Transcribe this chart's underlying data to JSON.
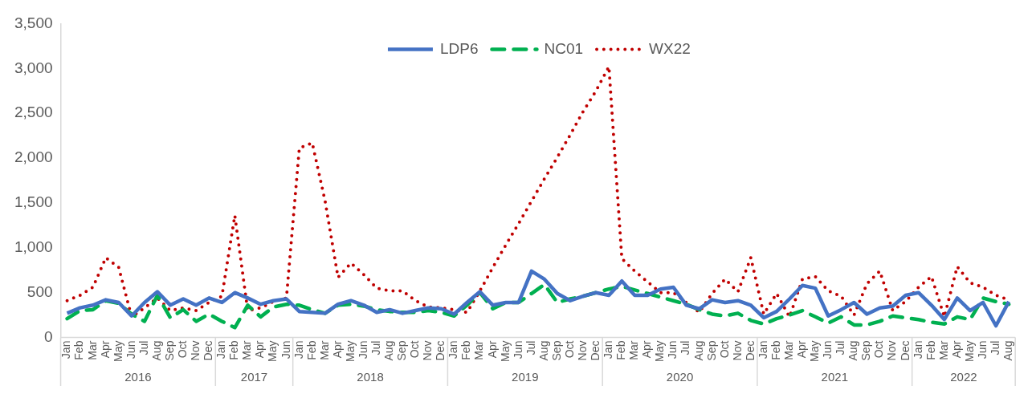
{
  "chart_data": {
    "type": "line",
    "categories": [
      "Jan",
      "Feb",
      "Mar",
      "Apr",
      "May",
      "Jun",
      "Jul",
      "Aug",
      "Sep",
      "Oct",
      "Nov",
      "Dec",
      "Jan",
      "Feb",
      "Mar",
      "Apr",
      "May",
      "Jun",
      "Jan",
      "Feb",
      "Mar",
      "Apr",
      "May",
      "Jun",
      "Jul",
      "Aug",
      "Sep",
      "Oct",
      "Nov",
      "Dec",
      "Jan",
      "Feb",
      "Mar",
      "Apr",
      "May",
      "Jun",
      "Jul",
      "Aug",
      "Sep",
      "Oct",
      "Nov",
      "Dec",
      "Jan",
      "Feb",
      "Mar",
      "Apr",
      "May",
      "Jun",
      "Jul",
      "Aug",
      "Sep",
      "Oct",
      "Nov",
      "Dec",
      "Jan",
      "Feb",
      "Mar",
      "Apr",
      "May",
      "Jun",
      "Jul",
      "Aug",
      "Sep",
      "Oct",
      "Nov",
      "Dec",
      "Jan",
      "Feb",
      "Mar",
      "Apr",
      "May",
      "Jun",
      "Jul",
      "Aug"
    ],
    "series": [
      {
        "name": "LDP6",
        "color": "#4472c4",
        "line_style": "solid",
        "values": [
          270,
          330,
          360,
          420,
          390,
          240,
          390,
          510,
          360,
          430,
          360,
          440,
          390,
          500,
          440,
          370,
          410,
          430,
          290,
          280,
          270,
          370,
          410,
          360,
          280,
          310,
          270,
          300,
          330,
          320,
          260,
          390,
          510,
          360,
          390,
          390,
          740,
          650,
          490,
          410,
          460,
          500,
          470,
          630,
          470,
          470,
          540,
          560,
          360,
          320,
          420,
          390,
          410,
          360,
          220,
          290,
          430,
          580,
          550,
          240,
          310,
          390,
          260,
          330,
          350,
          470,
          500,
          360,
          200,
          440,
          300,
          390,
          130,
          400
        ]
      },
      {
        "name": "NC01",
        "color": "#00b050",
        "line_style": "dashed",
        "values": [
          210,
          300,
          310,
          410,
          380,
          260,
          180,
          470,
          220,
          310,
          180,
          260,
          180,
          110,
          360,
          230,
          340,
          370,
          360,
          310,
          270,
          360,
          370,
          350,
          310,
          290,
          280,
          280,
          300,
          280,
          240,
          360,
          500,
          320,
          390,
          390,
          490,
          590,
          390,
          430,
          460,
          500,
          540,
          570,
          530,
          490,
          450,
          410,
          370,
          310,
          260,
          240,
          270,
          190,
          150,
          210,
          250,
          300,
          230,
          160,
          230,
          140,
          140,
          180,
          240,
          220,
          200,
          170,
          150,
          230,
          200,
          440,
          400,
          370
        ]
      },
      {
        "name": "WX22",
        "color": "#c00000",
        "line_style": "dotted",
        "values": [
          410,
          470,
          560,
          890,
          780,
          230,
          330,
          440,
          300,
          330,
          300,
          390,
          460,
          1360,
          300,
          330,
          400,
          440,
          2110,
          2170,
          1520,
          670,
          830,
          700,
          550,
          520,
          520,
          410,
          340,
          330,
          310,
          280,
          520,
          780,
          1030,
          1270,
          1520,
          1770,
          2010,
          2260,
          2520,
          2750,
          3020,
          880,
          740,
          620,
          500,
          500,
          390,
          280,
          490,
          650,
          510,
          890,
          260,
          490,
          230,
          650,
          680,
          520,
          460,
          250,
          600,
          740,
          300,
          400,
          560,
          680,
          230,
          790,
          610,
          560,
          470,
          420
        ]
      }
    ],
    "ylim": [
      0,
      3500
    ],
    "yticks": [
      0,
      500,
      {
        "value": 1000,
        "label": "1,000"
      },
      {
        "value": 1500,
        "label": "1,500"
      },
      {
        "value": 2000,
        "label": "2,000"
      },
      {
        "value": 2500,
        "label": "2,500"
      },
      {
        "value": 3000,
        "label": "3,000"
      },
      {
        "value": 3500,
        "label": "3,500"
      }
    ],
    "annotations": [
      "2016",
      "2017",
      "2018",
      "2019",
      "2020",
      "2021",
      "2022"
    ],
    "grid": false,
    "legend": "top",
    "marker": "none"
  }
}
